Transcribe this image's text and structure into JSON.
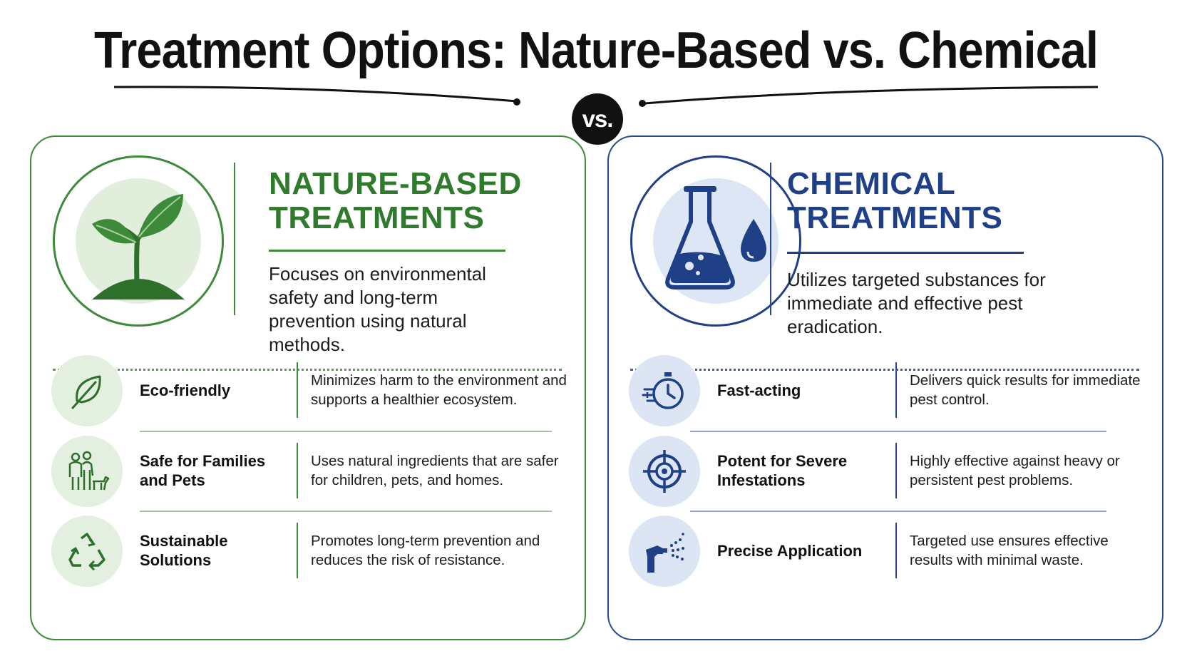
{
  "title": "Treatment Options: Nature-Based vs. Chemical",
  "vs_label": "vs.",
  "nature": {
    "heading_line1": "NATURE-BASED",
    "heading_line2": "TREATMENTS",
    "description": "Focuses on environmental safety and long-term prevention using natural methods.",
    "hero_icon": "sprout-icon",
    "features": [
      {
        "icon": "leaf-icon",
        "name": "Eco-friendly",
        "description": "Minimizes harm to the environment and supports a healthier ecosystem."
      },
      {
        "icon": "family-pet-icon",
        "name": "Safe for Families and Pets",
        "description": "Uses natural ingredients that are safer for children, pets, and homes."
      },
      {
        "icon": "recycle-icon",
        "name": "Sustainable Solutions",
        "description": "Promotes long-term prevention and reduces the risk of resistance."
      }
    ],
    "colors": {
      "accent": "#2f7a2c",
      "soft": "#e1eedc"
    }
  },
  "chemical": {
    "heading_line1": "CHEMICAL",
    "heading_line2": "TREATMENTS",
    "description": "Utilizes targeted substances for immediate and effective pest eradication.",
    "hero_icon": "flask-droplet-icon",
    "features": [
      {
        "icon": "stopwatch-icon",
        "name": "Fast-acting",
        "description": "Delivers quick results for immediate pest control."
      },
      {
        "icon": "target-icon",
        "name": "Potent for Severe Infestations",
        "description": "Highly effective against heavy or persistent pest problems."
      },
      {
        "icon": "spray-nozzle-icon",
        "name": "Precise Application",
        "description": "Targeted use ensures effective results with minimal waste."
      }
    ],
    "colors": {
      "accent": "#1f3f86",
      "soft": "#dde6f4"
    }
  }
}
